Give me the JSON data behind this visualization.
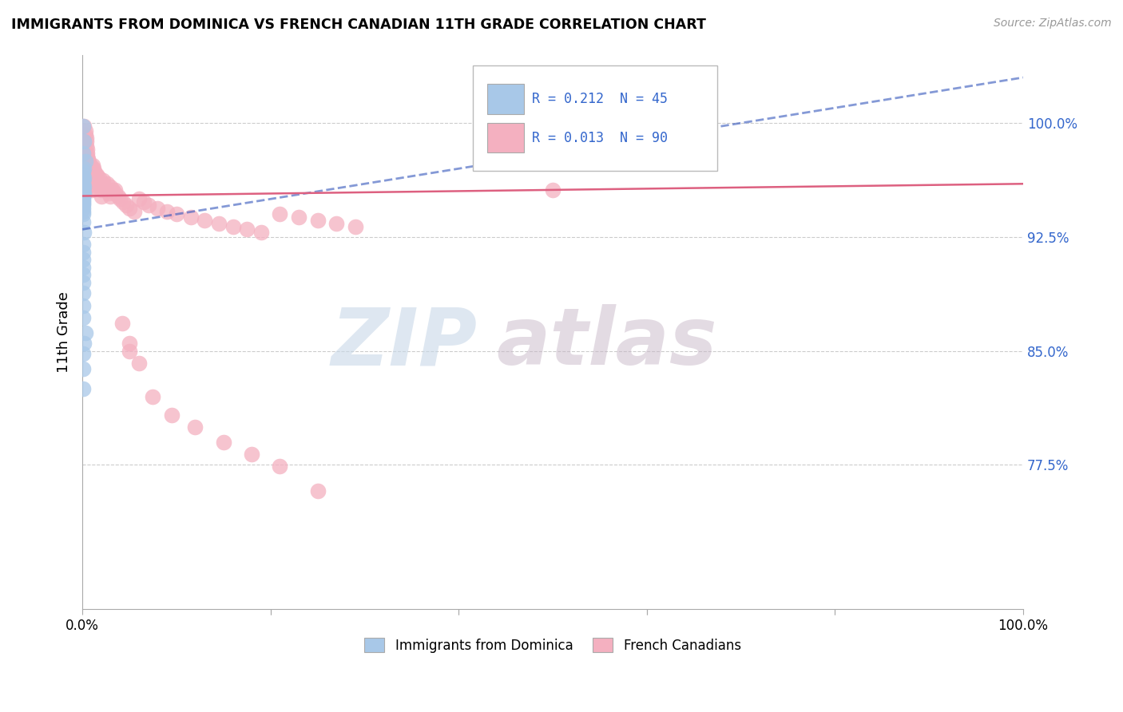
{
  "title": "IMMIGRANTS FROM DOMINICA VS FRENCH CANADIAN 11TH GRADE CORRELATION CHART",
  "source": "Source: ZipAtlas.com",
  "ylabel": "11th Grade",
  "ytick_labels": [
    "100.0%",
    "92.5%",
    "85.0%",
    "77.5%"
  ],
  "ytick_values": [
    1.0,
    0.925,
    0.85,
    0.775
  ],
  "xlim": [
    0.0,
    1.0
  ],
  "ylim": [
    0.68,
    1.045
  ],
  "legend_blue_R": "R = 0.212",
  "legend_blue_N": "N = 45",
  "legend_pink_R": "R = 0.013",
  "legend_pink_N": "N = 90",
  "legend_label_blue": "Immigrants from Dominica",
  "legend_label_pink": "French Canadians",
  "blue_color": "#a8c8e8",
  "pink_color": "#f4b0c0",
  "blue_line_color": "#3355bb",
  "pink_line_color": "#dd6080",
  "watermark_zip": "ZIP",
  "watermark_atlas": "atlas",
  "blue_scatter_x": [
    0.001,
    0.002,
    0.001,
    0.003,
    0.002,
    0.001,
    0.001,
    0.002,
    0.001,
    0.001,
    0.001,
    0.001,
    0.001,
    0.002,
    0.001,
    0.001,
    0.001,
    0.002,
    0.001,
    0.001,
    0.001,
    0.001,
    0.001,
    0.001,
    0.001,
    0.001,
    0.001,
    0.001,
    0.001,
    0.001,
    0.002,
    0.001,
    0.001,
    0.001,
    0.001,
    0.001,
    0.001,
    0.001,
    0.001,
    0.001,
    0.003,
    0.002,
    0.001,
    0.001,
    0.001
  ],
  "blue_scatter_y": [
    0.998,
    0.988,
    0.98,
    0.975,
    0.97,
    0.968,
    0.966,
    0.964,
    0.963,
    0.962,
    0.961,
    0.96,
    0.959,
    0.958,
    0.957,
    0.956,
    0.955,
    0.954,
    0.953,
    0.952,
    0.951,
    0.95,
    0.949,
    0.948,
    0.947,
    0.946,
    0.944,
    0.942,
    0.94,
    0.935,
    0.928,
    0.92,
    0.915,
    0.91,
    0.905,
    0.9,
    0.895,
    0.888,
    0.88,
    0.872,
    0.862,
    0.855,
    0.848,
    0.838,
    0.825
  ],
  "pink_scatter_x": [
    0.002,
    0.003,
    0.003,
    0.004,
    0.004,
    0.004,
    0.005,
    0.005,
    0.005,
    0.006,
    0.006,
    0.006,
    0.007,
    0.007,
    0.008,
    0.008,
    0.009,
    0.009,
    0.01,
    0.01,
    0.011,
    0.012,
    0.013,
    0.014,
    0.015,
    0.016,
    0.017,
    0.018,
    0.019,
    0.02,
    0.022,
    0.024,
    0.026,
    0.028,
    0.03,
    0.032,
    0.035,
    0.038,
    0.04,
    0.043,
    0.047,
    0.05,
    0.055,
    0.06,
    0.065,
    0.07,
    0.08,
    0.09,
    0.1,
    0.115,
    0.13,
    0.145,
    0.16,
    0.175,
    0.19,
    0.21,
    0.23,
    0.25,
    0.27,
    0.29,
    0.002,
    0.003,
    0.004,
    0.005,
    0.006,
    0.007,
    0.008,
    0.01,
    0.012,
    0.015,
    0.018,
    0.022,
    0.026,
    0.03,
    0.035,
    0.042,
    0.05,
    0.06,
    0.075,
    0.095,
    0.12,
    0.15,
    0.18,
    0.21,
    0.25,
    0.005,
    0.01,
    0.02,
    0.05,
    0.5
  ],
  "pink_scatter_y": [
    0.998,
    0.995,
    0.992,
    0.99,
    0.988,
    0.985,
    0.983,
    0.98,
    0.978,
    0.976,
    0.974,
    0.972,
    0.97,
    0.968,
    0.966,
    0.964,
    0.963,
    0.961,
    0.96,
    0.958,
    0.972,
    0.97,
    0.968,
    0.966,
    0.965,
    0.963,
    0.961,
    0.959,
    0.958,
    0.956,
    0.96,
    0.958,
    0.956,
    0.954,
    0.952,
    0.956,
    0.954,
    0.952,
    0.95,
    0.948,
    0.946,
    0.944,
    0.942,
    0.95,
    0.948,
    0.946,
    0.944,
    0.942,
    0.94,
    0.938,
    0.936,
    0.934,
    0.932,
    0.93,
    0.928,
    0.94,
    0.938,
    0.936,
    0.934,
    0.932,
    0.975,
    0.973,
    0.971,
    0.978,
    0.976,
    0.974,
    0.972,
    0.97,
    0.968,
    0.966,
    0.964,
    0.962,
    0.96,
    0.958,
    0.956,
    0.868,
    0.855,
    0.842,
    0.82,
    0.808,
    0.8,
    0.79,
    0.782,
    0.774,
    0.758,
    0.958,
    0.956,
    0.952,
    0.85,
    0.956
  ],
  "blue_trend_x": [
    0.0,
    1.0
  ],
  "blue_trend_y_intercept": 0.93,
  "blue_trend_slope": 0.1,
  "pink_trend_x": [
    0.0,
    1.0
  ],
  "pink_trend_y_intercept": 0.952,
  "pink_trend_slope": 0.008
}
